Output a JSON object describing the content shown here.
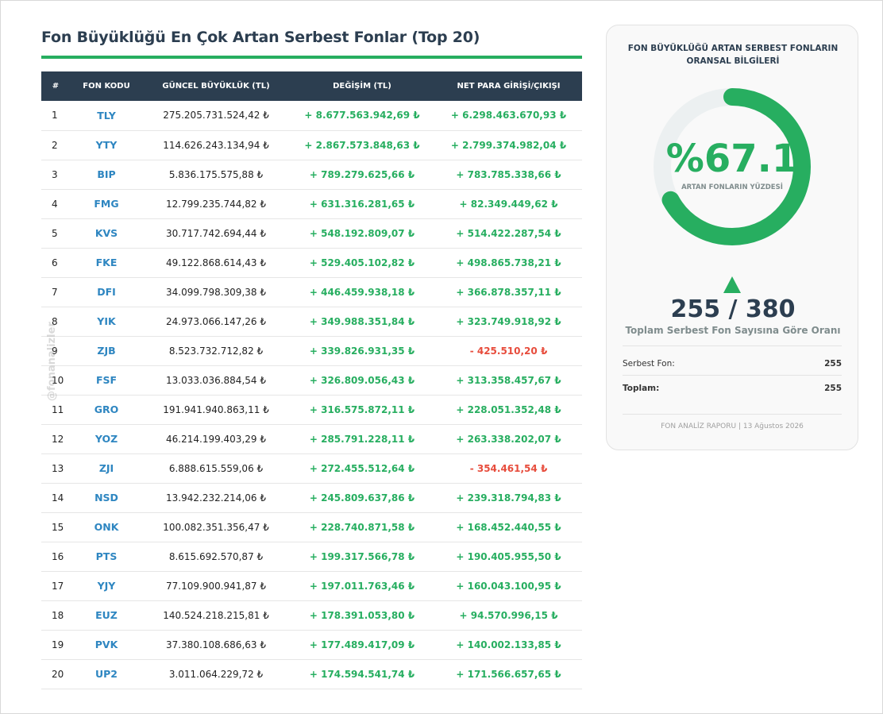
{
  "page": {
    "title": "Fon Büyüklüğü En Çok Artan Serbest Fonlar (Top 20)",
    "watermark": "@fonanalizler",
    "colors": {
      "header_bg": "#2c3e50",
      "accent_green": "#27ae60",
      "negative_red": "#e74c3c",
      "code_blue": "#2e86c1"
    }
  },
  "table": {
    "headers": [
      "#",
      "FON KODU",
      "GÜNCEL BÜYÜKLÜK (TL)",
      "DEĞİŞİM (TL)",
      "NET PARA GİRİŞİ/ÇIKIŞI"
    ],
    "rows": [
      {
        "idx": "1",
        "code": "TLY",
        "size": "275.205.731.524,42 ₺",
        "change": "+ 8.677.563.942,69 ₺",
        "flow": "+ 6.298.463.670,93 ₺"
      },
      {
        "idx": "2",
        "code": "YTY",
        "size": "114.626.243.134,94 ₺",
        "change": "+ 2.867.573.848,63 ₺",
        "flow": "+ 2.799.374.982,04 ₺"
      },
      {
        "idx": "3",
        "code": "BIP",
        "size": "5.836.175.575,88 ₺",
        "change": "+ 789.279.625,66 ₺",
        "flow": "+ 783.785.338,66 ₺"
      },
      {
        "idx": "4",
        "code": "FMG",
        "size": "12.799.235.744,82 ₺",
        "change": "+ 631.316.281,65 ₺",
        "flow": "+ 82.349.449,62 ₺"
      },
      {
        "idx": "5",
        "code": "KVS",
        "size": "30.717.742.694,44 ₺",
        "change": "+ 548.192.809,07 ₺",
        "flow": "+ 514.422.287,54 ₺"
      },
      {
        "idx": "6",
        "code": "FKE",
        "size": "49.122.868.614,43 ₺",
        "change": "+ 529.405.102,82 ₺",
        "flow": "+ 498.865.738,21 ₺"
      },
      {
        "idx": "7",
        "code": "DFI",
        "size": "34.099.798.309,38 ₺",
        "change": "+ 446.459.938,18 ₺",
        "flow": "+ 366.878.357,11 ₺"
      },
      {
        "idx": "8",
        "code": "YIK",
        "size": "24.973.066.147,26 ₺",
        "change": "+ 349.988.351,84 ₺",
        "flow": "+ 323.749.918,92 ₺"
      },
      {
        "idx": "9",
        "code": "ZJB",
        "size": "8.523.732.712,82 ₺",
        "change": "+ 339.826.931,35 ₺",
        "flow": "- 425.510,20 ₺"
      },
      {
        "idx": "10",
        "code": "FSF",
        "size": "13.033.036.884,54 ₺",
        "change": "+ 326.809.056,43 ₺",
        "flow": "+ 313.358.457,67 ₺"
      },
      {
        "idx": "11",
        "code": "GRO",
        "size": "191.941.940.863,11 ₺",
        "change": "+ 316.575.872,11 ₺",
        "flow": "+ 228.051.352,48 ₺"
      },
      {
        "idx": "12",
        "code": "YOZ",
        "size": "46.214.199.403,29 ₺",
        "change": "+ 285.791.228,11 ₺",
        "flow": "+ 263.338.202,07 ₺"
      },
      {
        "idx": "13",
        "code": "ZJI",
        "size": "6.888.615.559,06 ₺",
        "change": "+ 272.455.512,64 ₺",
        "flow": "- 354.461,54 ₺"
      },
      {
        "idx": "14",
        "code": "NSD",
        "size": "13.942.232.214,06 ₺",
        "change": "+ 245.809.637,86 ₺",
        "flow": "+ 239.318.794,83 ₺"
      },
      {
        "idx": "15",
        "code": "ONK",
        "size": "100.082.351.356,47 ₺",
        "change": "+ 228.740.871,58 ₺",
        "flow": "+ 168.452.440,55 ₺"
      },
      {
        "idx": "16",
        "code": "PTS",
        "size": "8.615.692.570,87 ₺",
        "change": "+ 199.317.566,78 ₺",
        "flow": "+ 190.405.955,50 ₺"
      },
      {
        "idx": "17",
        "code": "YJY",
        "size": "77.109.900.941,87 ₺",
        "change": "+ 197.011.763,46 ₺",
        "flow": "+ 160.043.100,95 ₺"
      },
      {
        "idx": "18",
        "code": "EUZ",
        "size": "140.524.218.215,81 ₺",
        "change": "+ 178.391.053,80 ₺",
        "flow": "+ 94.570.996,15 ₺"
      },
      {
        "idx": "19",
        "code": "PVK",
        "size": "37.380.108.686,63 ₺",
        "change": "+ 177.489.417,09 ₺",
        "flow": "+ 140.002.133,85 ₺"
      },
      {
        "idx": "20",
        "code": "UP2",
        "size": "3.011.064.229,72 ₺",
        "change": "+ 174.594.541,74 ₺",
        "flow": "+ 171.566.657,65 ₺"
      }
    ]
  },
  "card": {
    "title": "FON BÜYÜKLÜĞÜ ARTAN SERBEST FONLARIN ORANSAL BİLGİLERİ",
    "gauge_value": "%67.1",
    "gauge_fraction": 0.671,
    "gauge_label": "ARTAN FONLARIN YÜZDESİ",
    "ratio": "255 / 380",
    "ratio_caption": "Toplam Serbest Fon Sayısına Göre Oranı",
    "stats": [
      {
        "label": "Serbest Fon:",
        "value": "255"
      },
      {
        "label": "Toplam:",
        "value": "255"
      }
    ],
    "footer": "FON ANALİZ RAPORU | 13 Ağustos 2026"
  }
}
